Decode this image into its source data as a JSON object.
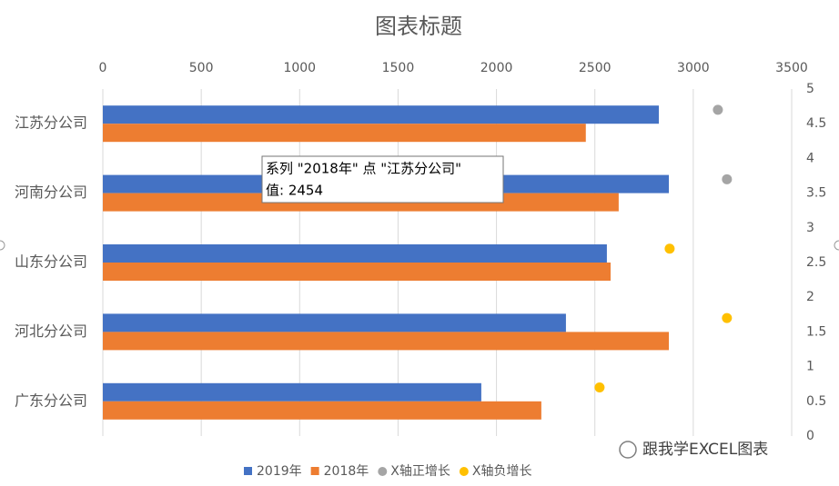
{
  "chart_data": {
    "type": "bar",
    "orientation": "horizontal",
    "title": "图表标题",
    "categories": [
      "江苏分公司",
      "河南分公司",
      "山东分公司",
      "河北分公司",
      "广东分公司"
    ],
    "series": [
      {
        "name": "2019年",
        "type": "bar",
        "color": "#4472c4",
        "values": [
          2825,
          2876,
          2561,
          2353,
          1923
        ]
      },
      {
        "name": "2018年",
        "type": "bar",
        "color": "#ed7d31",
        "values": [
          2454,
          2621,
          2580,
          2876,
          2228
        ]
      },
      {
        "name": "X轴正增长",
        "type": "scatter",
        "axis": "y2",
        "color": "#a5a5a5",
        "x": [
          3125,
          3171
        ],
        "values": [
          4.7,
          3.7
        ]
      },
      {
        "name": "X轴负增长",
        "type": "scatter",
        "axis": "y2",
        "color": "#ffc000",
        "x": [
          2880,
          3171,
          2524
        ],
        "values": [
          2.7,
          1.7,
          0.7
        ]
      }
    ],
    "xlim": [
      0,
      3500
    ],
    "xticks": [
      0,
      500,
      1000,
      1500,
      2000,
      2500,
      3000,
      3500
    ],
    "y2lim": [
      0,
      5
    ],
    "y2ticks": [
      0,
      0.5,
      1,
      1.5,
      2,
      2.5,
      3,
      3.5,
      4,
      4.5,
      5
    ],
    "grid": true
  },
  "tooltip": [
    "系列 \"2018年\" 点 \"江苏分公司\"",
    "值: 2454"
  ],
  "watermark": "跟我学EXCEL图表"
}
